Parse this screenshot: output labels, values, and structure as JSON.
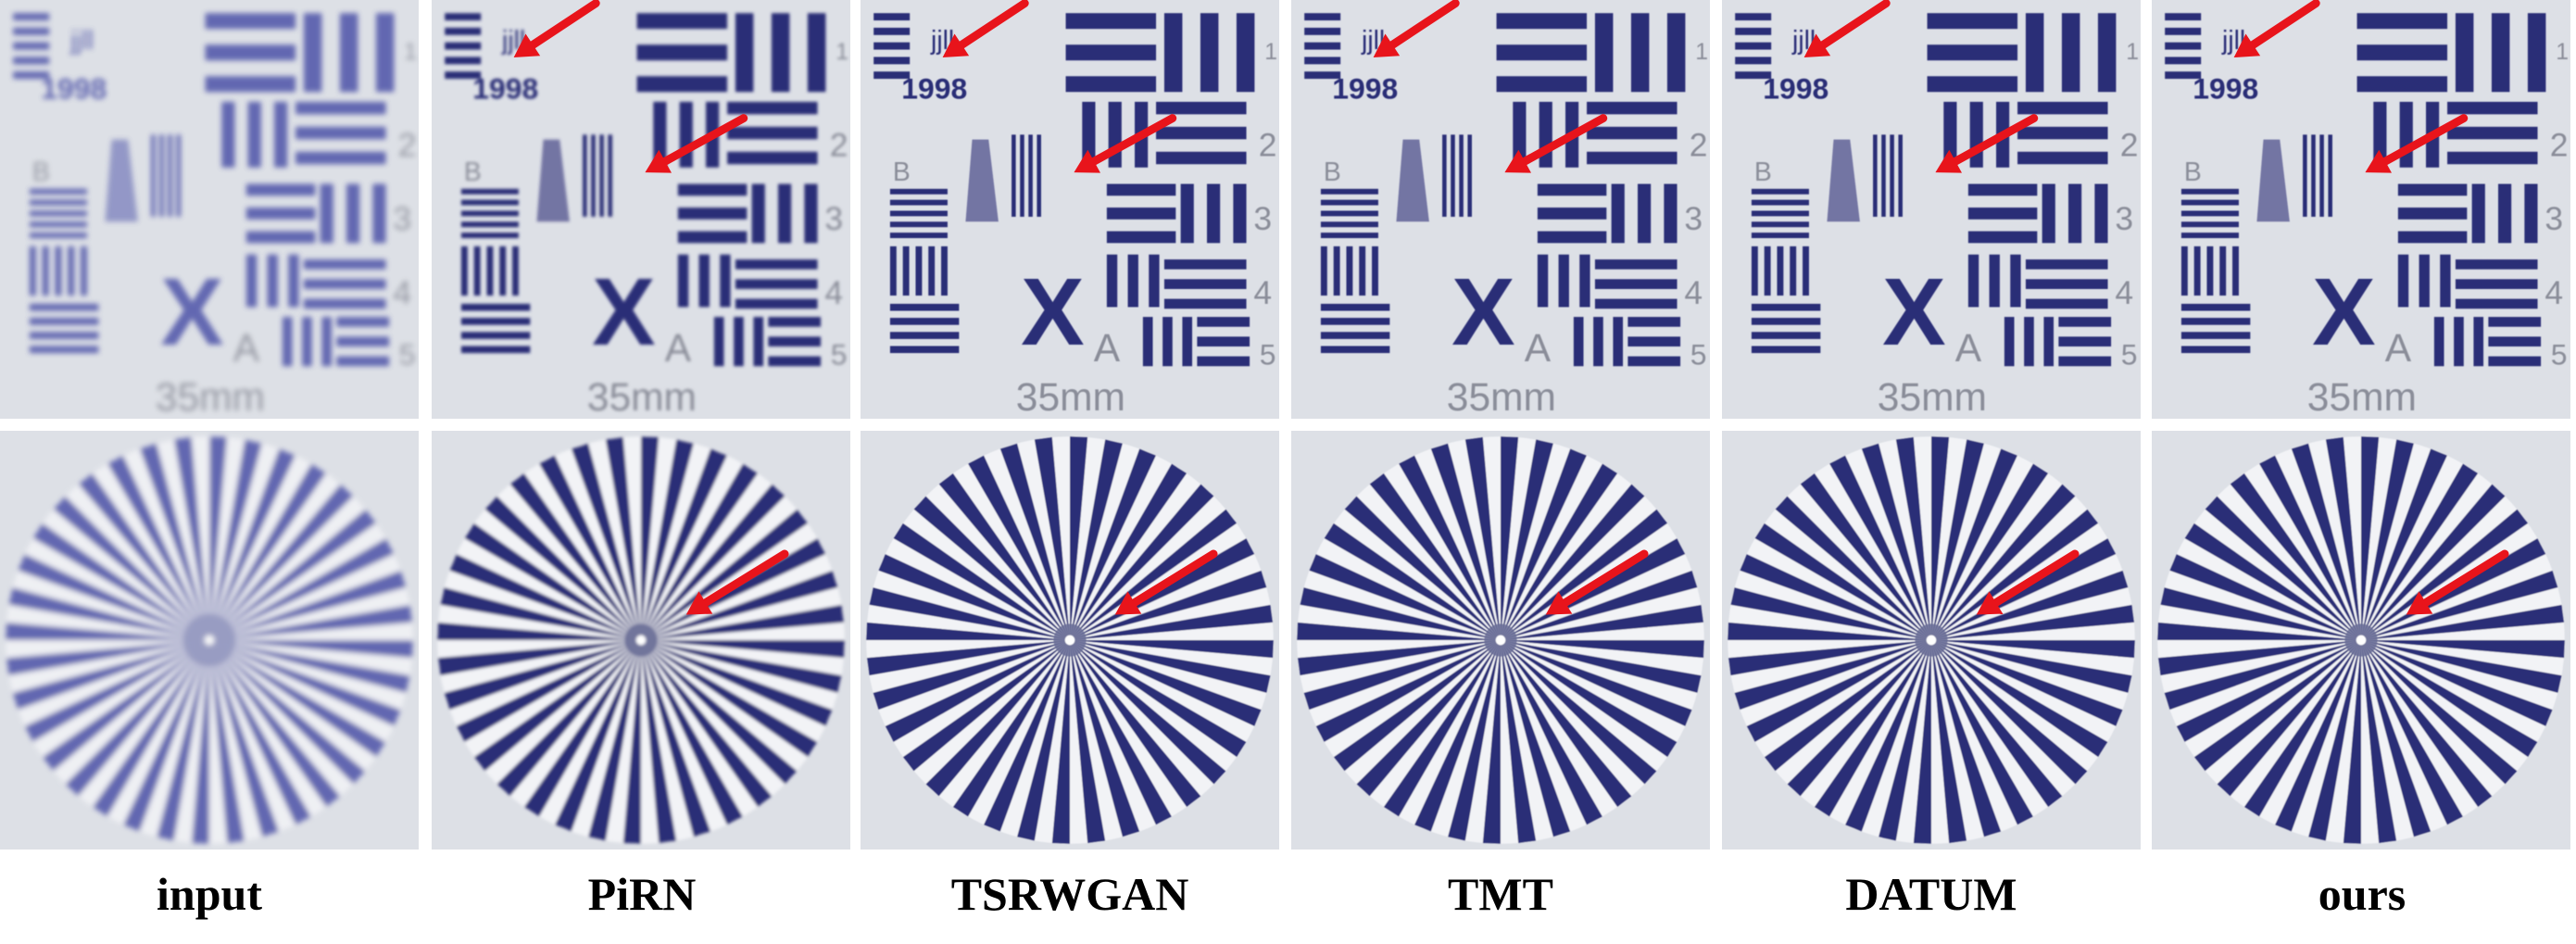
{
  "figure": {
    "columns": [
      {
        "label": "input",
        "quality": "blurry"
      },
      {
        "label": "PiRN",
        "quality": "soft"
      },
      {
        "label": "TSRWGAN",
        "quality": "sharp"
      },
      {
        "label": "TMT",
        "quality": "sharp"
      },
      {
        "label": "DATUM",
        "quality": "sharp"
      },
      {
        "label": "ours",
        "quality": "sharp"
      }
    ],
    "target_text": {
      "size_label": "35mm",
      "number_label": "1998",
      "big_letter": "X",
      "corner_letter": "A",
      "side_letter": "B",
      "group_numbers": [
        "1",
        "2",
        "3",
        "4",
        "5"
      ]
    },
    "colors": {
      "bar_color": "#2c2f77",
      "bar_color_blurry": "#4d52a8",
      "arrow_color": "#e8141b",
      "panel_background": "#dde0e6"
    }
  }
}
